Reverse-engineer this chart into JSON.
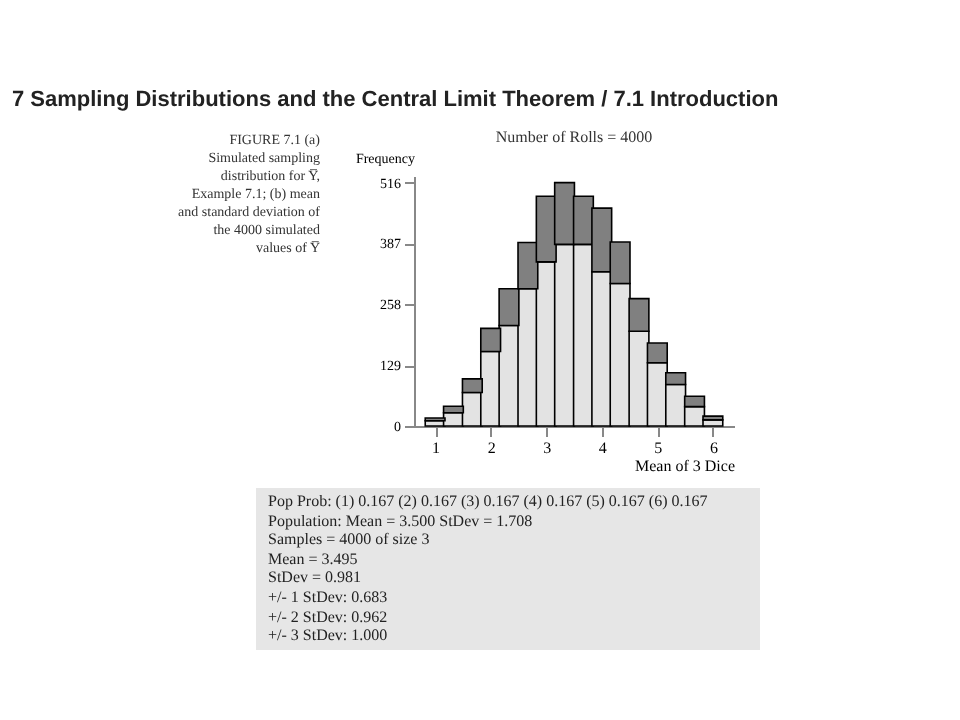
{
  "chart_data": {
    "type": "bar",
    "title": "7 Sampling Distributions and the Central Limit Theorem / 7.1 Introduction",
    "subtitle": "Number of Rolls = 4000",
    "xlabel": "Mean of 3 Dice",
    "ylabel": "Frequency",
    "x": [
      1,
      1.33,
      1.67,
      2,
      2.33,
      2.67,
      3,
      3.33,
      3.67,
      4,
      4.33,
      4.67,
      5,
      5.33,
      5.67,
      6
    ],
    "stacked": true,
    "series": [
      {
        "color": "#e3e3e3",
        "values": [
          11,
          28,
          71,
          158,
          213,
          291,
          348,
          385,
          385,
          327,
          302,
          201,
          134,
          88,
          41,
          13
        ]
      },
      {
        "color": "#808080",
        "values": [
          6,
          14,
          29,
          49,
          78,
          98,
          139,
          131,
          102,
          135,
          88,
          69,
          42,
          25,
          22,
          8
        ]
      }
    ],
    "xlim": [
      0.8,
      6.2
    ],
    "xticks": [
      1,
      2,
      3,
      4,
      5,
      6
    ],
    "ylim": [
      0,
      530
    ],
    "yticks": [
      0,
      129,
      258,
      387,
      516
    ],
    "grid": false,
    "legend": false,
    "annotations": [
      "FIGURE 7.1 (a) Simulated sampling distribution for Y̅, Example 7.1; (b) mean and standard deviation of the 4000 simulated values of Y̅",
      "Pop Prob: (1) 0.167 (2) 0.167 (3) 0.167 (4) 0.167 (5) 0.167 (6) 0.167",
      "Population: Mean = 3.500  StDev = 1.708",
      "Samples = 4000 of size 3",
      "Mean = 3.495",
      "StDev = 0.981",
      "+/- 1 StDev: 0.683",
      "+/- 2 StDev: 0.962",
      "+/- 3 StDev: 1.000"
    ]
  }
}
